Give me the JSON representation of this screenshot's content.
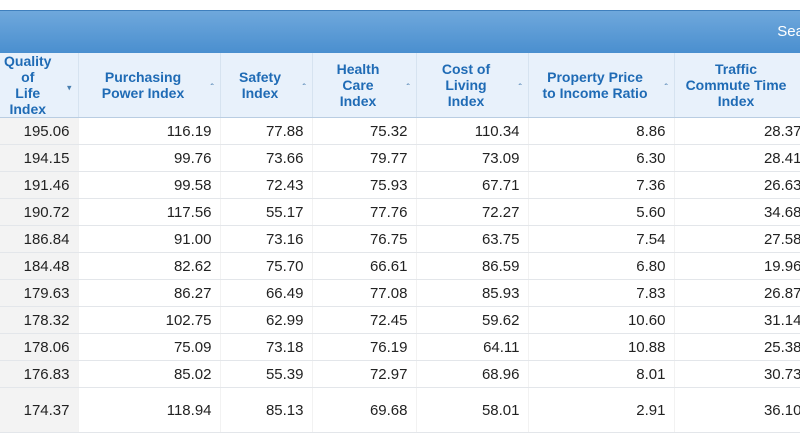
{
  "topbar": {
    "search_label": "Sea"
  },
  "columns": [
    {
      "label": "Quality of\nLife Index",
      "sort": "▾"
    },
    {
      "label": "Purchasing\nPower Index",
      "sort": "ˆ"
    },
    {
      "label": "Safety\nIndex",
      "sort": "ˆ"
    },
    {
      "label": "Health\nCare\nIndex",
      "sort": "ˆ"
    },
    {
      "label": "Cost of\nLiving\nIndex",
      "sort": "ˆ"
    },
    {
      "label": "Property Price\nto Income Ratio",
      "sort": "ˆ"
    },
    {
      "label": "Traffic\nCommute Time\nIndex",
      "sort": "ˆ"
    }
  ],
  "rows": [
    [
      "195.06",
      "116.19",
      "77.88",
      "75.32",
      "110.34",
      "8.86",
      "28.37"
    ],
    [
      "194.15",
      "99.76",
      "73.66",
      "79.77",
      "73.09",
      "6.30",
      "28.41"
    ],
    [
      "191.46",
      "99.58",
      "72.43",
      "75.93",
      "67.71",
      "7.36",
      "26.63"
    ],
    [
      "190.72",
      "117.56",
      "55.17",
      "77.76",
      "72.27",
      "5.60",
      "34.68"
    ],
    [
      "186.84",
      "91.00",
      "73.16",
      "76.75",
      "63.75",
      "7.54",
      "27.58"
    ],
    [
      "184.48",
      "82.62",
      "75.70",
      "66.61",
      "86.59",
      "6.80",
      "19.96"
    ],
    [
      "179.63",
      "86.27",
      "66.49",
      "77.08",
      "85.93",
      "7.83",
      "26.87"
    ],
    [
      "178.32",
      "102.75",
      "62.99",
      "72.45",
      "59.62",
      "10.60",
      "31.14"
    ],
    [
      "178.06",
      "75.09",
      "73.18",
      "76.19",
      "64.11",
      "10.88",
      "25.38"
    ],
    [
      "176.83",
      "85.02",
      "55.39",
      "72.97",
      "68.96",
      "8.01",
      "30.73"
    ],
    [
      "174.37",
      "118.94",
      "85.13",
      "69.68",
      "58.01",
      "2.91",
      "36.10"
    ]
  ]
}
